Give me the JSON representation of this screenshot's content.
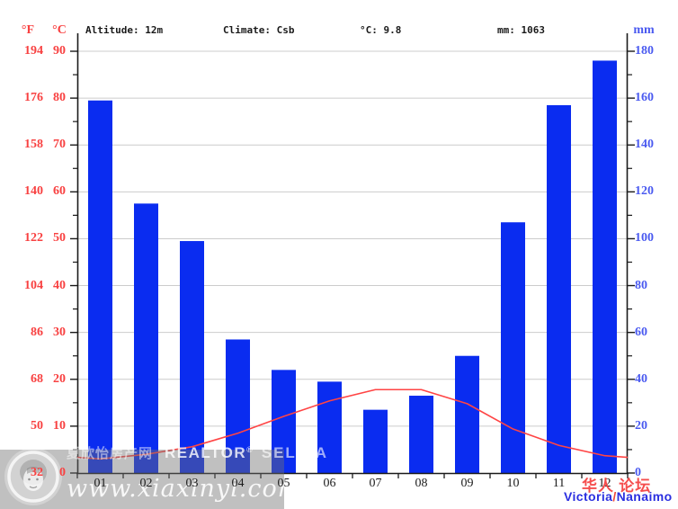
{
  "header": {
    "f_unit": "°F",
    "c_unit": "°C",
    "altitude": "Altitude: 12m",
    "climate": "Climate: Csb",
    "avg_temp": "°C: 9.8",
    "avg_precip": "mm: 1063",
    "mm_unit": "mm"
  },
  "axes": {
    "f_ticks": [
      "194",
      "176",
      "158",
      "140",
      "122",
      "104",
      "86",
      "68",
      "50",
      "32"
    ],
    "c_ticks": [
      "90",
      "80",
      "70",
      "60",
      "50",
      "40",
      "30",
      "20",
      "10",
      "0"
    ],
    "mm_ticks": [
      "180",
      "160",
      "140",
      "120",
      "100",
      "80",
      "60",
      "40",
      "20",
      "0"
    ]
  },
  "chart_data": {
    "type": "bar",
    "title": "",
    "categories": [
      "01",
      "02",
      "03",
      "04",
      "05",
      "06",
      "07",
      "08",
      "09",
      "10",
      "11",
      "12"
    ],
    "series": [
      {
        "name": "precipitation_mm",
        "type": "bar",
        "color": "#0a2cf0",
        "values": [
          159,
          115,
          99,
          57,
          44,
          39,
          27,
          33,
          50,
          107,
          157,
          176
        ]
      },
      {
        "name": "temperature_c",
        "type": "line",
        "color": "#ff4444",
        "values": [
          3.0,
          4.0,
          5.6,
          8.5,
          12.1,
          15.4,
          17.8,
          17.8,
          14.8,
          9.4,
          5.9,
          3.7
        ]
      }
    ],
    "left_axis": {
      "labels": [
        "°F",
        "°C"
      ],
      "range_c": [
        0,
        90
      ],
      "range_f": [
        32,
        194
      ]
    },
    "right_axis": {
      "label": "mm",
      "range_mm": [
        0,
        180
      ]
    },
    "grid": true,
    "legend": "none",
    "annotations": {
      "altitude": "Altitude: 12m",
      "climate": "Climate: Csb",
      "mean_temp_c": 9.8,
      "annual_precip_mm": 1063
    }
  },
  "colors": {
    "bar": "#0a2cf0",
    "line": "#ff4444",
    "grid": "#cccccc",
    "axis": "#1a1a1a",
    "left_ticks": "#f84141",
    "right_ticks": "#4a5af0"
  },
  "watermarks": {
    "agency_cn": "夏欣怡房产网",
    "realtor": "REALTOR",
    "registered": "®",
    "agent": "SELINA",
    "website": "www.xiaxinyi.com"
  },
  "footer": {
    "forum": "华人 论坛",
    "location_city": "Victoria",
    "location_slash": "/",
    "location_city2": "Nanaimo"
  }
}
